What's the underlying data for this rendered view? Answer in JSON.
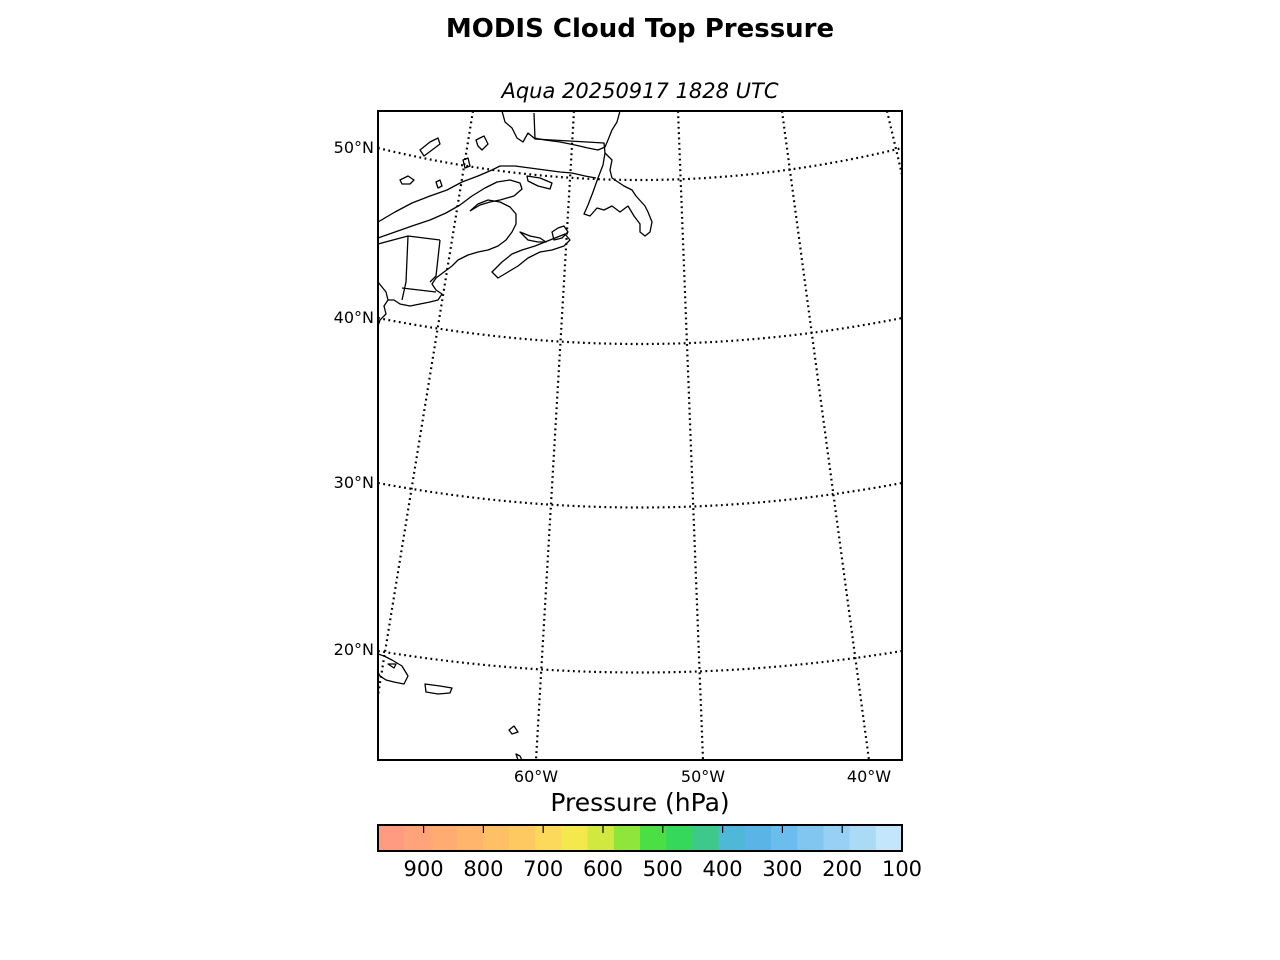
{
  "title": "MODIS Cloud Top Pressure",
  "subtitle": "Aqua 20250917 1828 UTC",
  "map": {
    "latitude_labels": [
      "50°N",
      "40°N",
      "30°N",
      "20°N"
    ],
    "longitude_labels": [
      "60°W",
      "50°W",
      "40°W"
    ],
    "graticule_style": "dotted"
  },
  "colorbar": {
    "title": "Pressure (hPa)",
    "orientation": "horizontal",
    "tick_labels": [
      "900",
      "800",
      "700",
      "600",
      "500",
      "400",
      "300",
      "200",
      "100"
    ],
    "colors": [
      "#ff9b80",
      "#ffa37a",
      "#ffab72",
      "#ffb56b",
      "#ffbf65",
      "#ffc961",
      "#fcd95a",
      "#f5e84d",
      "#d0e840",
      "#8fe53a",
      "#4cde45",
      "#35d85b",
      "#3ec98b",
      "#4fb7d8",
      "#5ab4e6",
      "#6bbdee",
      "#80c6f0",
      "#96d0f4",
      "#abdaf6",
      "#c3e6fb"
    ]
  }
}
